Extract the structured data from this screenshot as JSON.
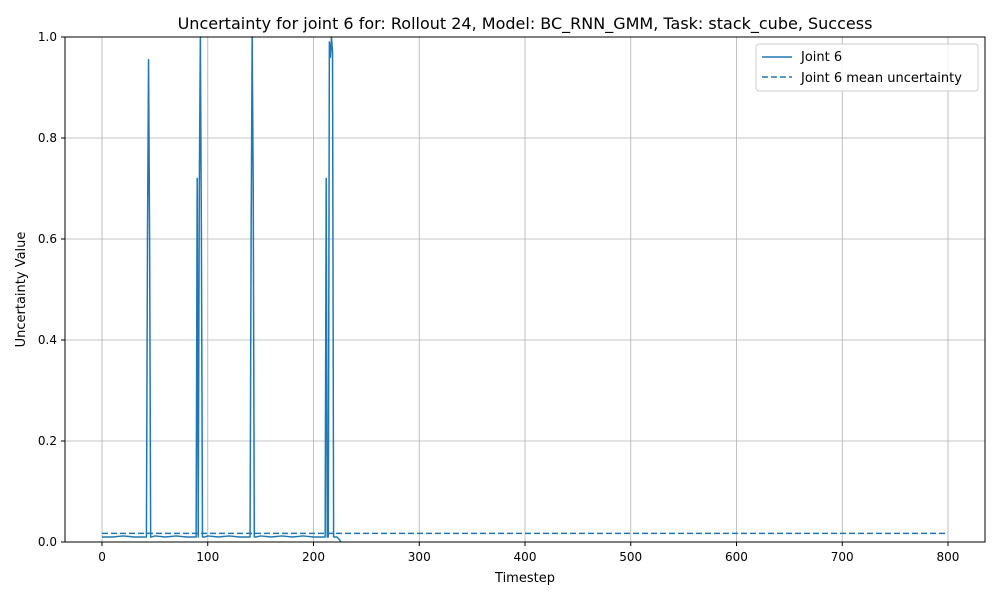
{
  "chart_data": {
    "type": "line",
    "title": "Uncertainty for joint 6 for: Rollout 24, Model: BC_RNN_GMM, Task: stack_cube, Success",
    "xlabel": "Timestep",
    "ylabel": "Uncertainty Value",
    "xlim": [
      -35,
      835
    ],
    "ylim": [
      0,
      1.0
    ],
    "xticks": [
      0,
      100,
      200,
      300,
      400,
      500,
      600,
      700,
      800
    ],
    "yticks": [
      0.0,
      0.2,
      0.4,
      0.6,
      0.8,
      1.0
    ],
    "ytick_labels": [
      "0.0",
      "0.2",
      "0.4",
      "0.6",
      "0.8",
      "1.0"
    ],
    "grid": true,
    "legend_position": "top-right",
    "color": "#1f77b4",
    "series": [
      {
        "name": "Joint 6",
        "style": "solid",
        "x": [
          0,
          10,
          20,
          30,
          40,
          42,
          43,
          44,
          45,
          46,
          47,
          50,
          60,
          70,
          80,
          88,
          89,
          90,
          91,
          92,
          93,
          94,
          95,
          96,
          97,
          100,
          110,
          120,
          130,
          138,
          140,
          141,
          142,
          143,
          144,
          145,
          146,
          150,
          160,
          170,
          180,
          190,
          200,
          208,
          210,
          211,
          212,
          213,
          214,
          215,
          216,
          217,
          218,
          219,
          220,
          222,
          224,
          226
        ],
        "y": [
          0.01,
          0.01,
          0.012,
          0.01,
          0.01,
          0.01,
          0.6,
          0.955,
          0.6,
          0.01,
          0.01,
          0.012,
          0.01,
          0.012,
          0.01,
          0.01,
          0.01,
          0.72,
          0.01,
          0.7,
          1.0,
          0.6,
          0.01,
          0.01,
          0.01,
          0.012,
          0.01,
          0.012,
          0.01,
          0.01,
          0.01,
          0.6,
          1.0,
          0.7,
          0.01,
          0.01,
          0.01,
          0.012,
          0.01,
          0.012,
          0.01,
          0.012,
          0.01,
          0.01,
          0.01,
          0.01,
          0.72,
          0.01,
          0.01,
          0.99,
          0.96,
          1.0,
          0.97,
          0.01,
          0.01,
          0.01,
          0.006,
          0.0
        ]
      },
      {
        "name": "Joint 6 mean uncertainty",
        "style": "dashed",
        "x": [
          0,
          800
        ],
        "y": [
          0.017,
          0.017
        ]
      }
    ]
  }
}
